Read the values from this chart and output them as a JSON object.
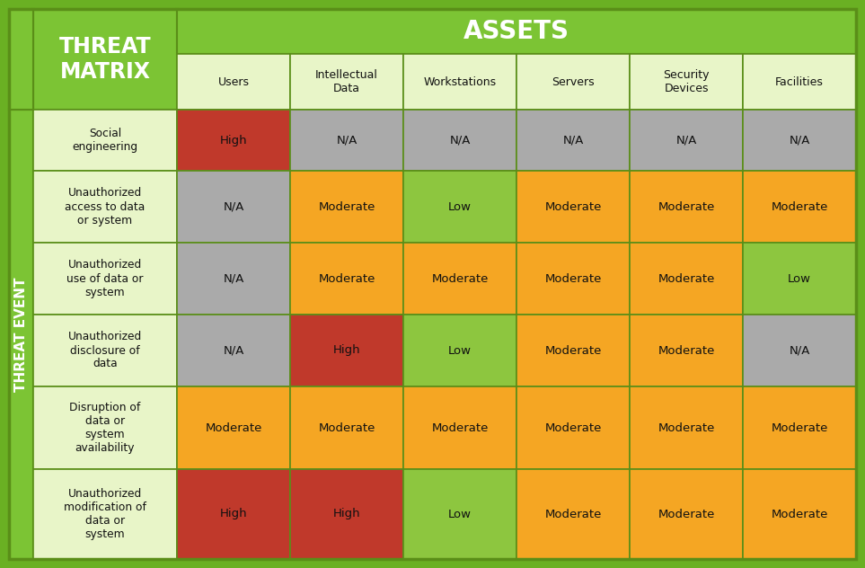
{
  "title_threat": "THREAT\nMATRIX",
  "title_assets": "ASSETS",
  "sidebar_label": "THREAT EVENT",
  "col_headers": [
    "Users",
    "Intellectual\nData",
    "Workstations",
    "Servers",
    "Security\nDevices",
    "Facilities"
  ],
  "row_headers": [
    "Social\nengineering",
    "Unauthorized\naccess to data\nor system",
    "Unauthorized\nuse of data or\nsystem",
    "Unauthorized\ndisclosure of\ndata",
    "Disruption of\ndata or\nsystem\navailability",
    "Unauthorized\nmodification of\ndata or\nsystem"
  ],
  "cell_data": [
    [
      "High",
      "N/A",
      "N/A",
      "N/A",
      "N/A",
      "N/A"
    ],
    [
      "N/A",
      "Moderate",
      "Low",
      "Moderate",
      "Moderate",
      "Moderate"
    ],
    [
      "N/A",
      "Moderate",
      "Moderate",
      "Moderate",
      "Moderate",
      "Low"
    ],
    [
      "N/A",
      "High",
      "Low",
      "Moderate",
      "Moderate",
      "N/A"
    ],
    [
      "Moderate",
      "Moderate",
      "Moderate",
      "Moderate",
      "Moderate",
      "Moderate"
    ],
    [
      "High",
      "High",
      "Low",
      "Moderate",
      "Moderate",
      "Moderate"
    ]
  ],
  "color_map": {
    "High": "#c0392b",
    "Moderate": "#f5a623",
    "Low": "#8dc63f",
    "N/A": "#aaaaaa"
  },
  "color_green_outer": "#6ab023",
  "color_header_green": "#7cc434",
  "color_row_label_bg": "#e8f5c8",
  "color_col_header_bg": "#e8f5c8",
  "color_border": "#5a8e18",
  "color_white": "#ffffff",
  "color_black": "#111111",
  "color_threat_matrix_bg": "#7cc434",
  "color_assets_bg": "#7cc434"
}
